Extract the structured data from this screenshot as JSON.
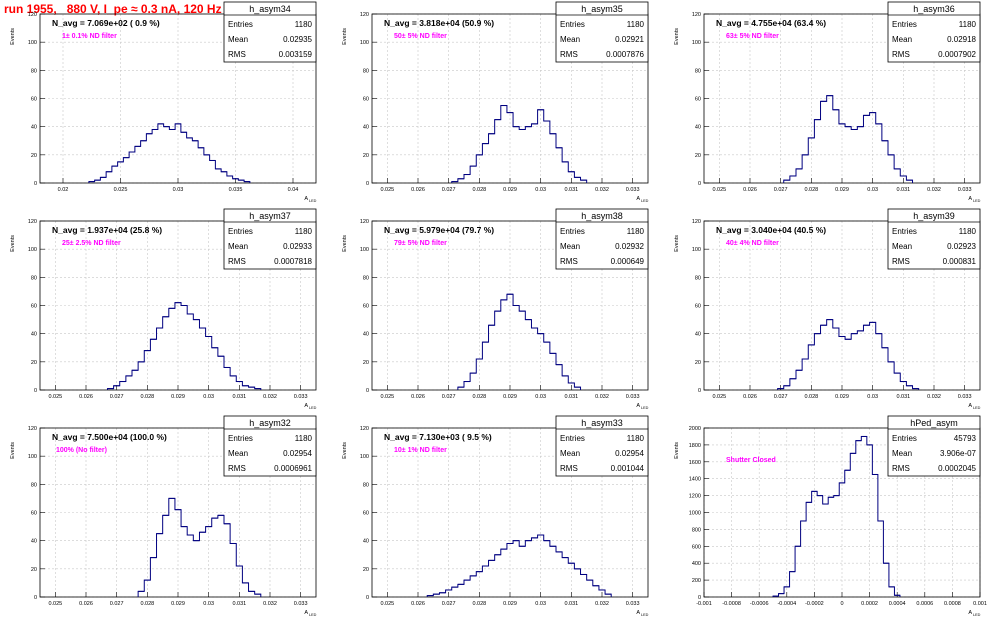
{
  "canvas_title": "run 1955,   880 V, I_pe ≈ 0.3 nA, 120 Hz",
  "stat_labels": {
    "entries": "Entries",
    "mean": "Mean",
    "rms": "RMS"
  },
  "y_axis_label": "Events",
  "x_axis_label": "A",
  "x_axis_subscript": "LED",
  "colors": {
    "hist_line": "#000080",
    "annotation": "#ff00ff",
    "grid": "#c8c8c8",
    "title": "#ff0000"
  },
  "chart_data": [
    {
      "type": "histogram",
      "name": "h_asym34",
      "title_text": "N_avg = 7.069e+02 ( 0.9 %)",
      "note": "1± 0.1% ND filter",
      "stats": {
        "entries": "1180",
        "mean": "0.02935",
        "rms": "0.003159"
      },
      "xlim": [
        0.018,
        0.042
      ],
      "ylim": [
        0,
        120
      ],
      "xticks": [
        0.02,
        0.025,
        0.03,
        0.035,
        0.04
      ],
      "xtick_labels": [
        "0.02",
        "0.025",
        "0.03",
        "0.035",
        "0.04"
      ],
      "yticks": [
        0,
        20,
        40,
        60,
        80,
        100,
        120
      ],
      "x": [
        0.0225,
        0.023,
        0.0235,
        0.024,
        0.0245,
        0.025,
        0.0255,
        0.026,
        0.0265,
        0.027,
        0.0275,
        0.028,
        0.0285,
        0.029,
        0.0295,
        0.03,
        0.0305,
        0.031,
        0.0315,
        0.032,
        0.0325,
        0.033,
        0.0335,
        0.034,
        0.0345,
        0.035,
        0.0355,
        0.036
      ],
      "values": [
        1,
        2,
        4,
        8,
        12,
        15,
        18,
        22,
        26,
        30,
        35,
        38,
        42,
        40,
        38,
        42,
        36,
        32,
        30,
        25,
        20,
        16,
        10,
        8,
        5,
        3,
        2,
        1
      ]
    },
    {
      "type": "histogram",
      "name": "h_asym35",
      "title_text": "N_avg = 3.818e+04 (50.9 %)",
      "note": "50± 5% ND filter",
      "stats": {
        "entries": "1180",
        "mean": "0.02921",
        "rms": "0.0007876"
      },
      "xlim": [
        0.0245,
        0.0335
      ],
      "ylim": [
        0,
        120
      ],
      "xticks": [
        0.025,
        0.026,
        0.027,
        0.028,
        0.029,
        0.03,
        0.031,
        0.032,
        0.033
      ],
      "xtick_labels": [
        "0.025",
        "0.026",
        "0.027",
        "0.028",
        "0.029",
        "0.03",
        "0.031",
        "0.032",
        "0.033"
      ],
      "yticks": [
        0,
        20,
        40,
        60,
        80,
        100,
        120
      ],
      "x": [
        0.0272,
        0.0274,
        0.0276,
        0.0278,
        0.028,
        0.0282,
        0.0284,
        0.0286,
        0.0288,
        0.029,
        0.0292,
        0.0294,
        0.0296,
        0.0298,
        0.03,
        0.0302,
        0.0304,
        0.0306,
        0.0308,
        0.031,
        0.0312,
        0.0314
      ],
      "values": [
        1,
        3,
        6,
        12,
        20,
        28,
        35,
        45,
        55,
        50,
        40,
        38,
        40,
        42,
        52,
        44,
        35,
        25,
        15,
        8,
        4,
        2
      ]
    },
    {
      "type": "histogram",
      "name": "h_asym36",
      "title_text": "N_avg = 4.755e+04 (63.4 %)",
      "note": "63± 5% ND filter",
      "stats": {
        "entries": "1180",
        "mean": "0.02918",
        "rms": "0.0007902"
      },
      "xlim": [
        0.0245,
        0.0335
      ],
      "ylim": [
        0,
        120
      ],
      "xticks": [
        0.025,
        0.026,
        0.027,
        0.028,
        0.029,
        0.03,
        0.031,
        0.032,
        0.033
      ],
      "xtick_labels": [
        "0.025",
        "0.026",
        "0.027",
        "0.028",
        "0.029",
        "0.03",
        "0.031",
        "0.032",
        "0.033"
      ],
      "yticks": [
        0,
        20,
        40,
        60,
        80,
        100,
        120
      ],
      "x": [
        0.0272,
        0.0274,
        0.0276,
        0.0278,
        0.028,
        0.0282,
        0.0284,
        0.0286,
        0.0288,
        0.029,
        0.0292,
        0.0294,
        0.0296,
        0.0298,
        0.03,
        0.0302,
        0.0304,
        0.0306,
        0.0308,
        0.031,
        0.0312
      ],
      "values": [
        2,
        5,
        10,
        20,
        32,
        45,
        58,
        62,
        52,
        42,
        40,
        38,
        40,
        48,
        50,
        42,
        30,
        20,
        10,
        5,
        2
      ]
    },
    {
      "type": "histogram",
      "name": "h_asym37",
      "title_text": "N_avg = 1.937e+04 (25.8 %)",
      "note": "25± 2.5% ND filter",
      "stats": {
        "entries": "1180",
        "mean": "0.02933",
        "rms": "0.0007818"
      },
      "xlim": [
        0.0245,
        0.0335
      ],
      "ylim": [
        0,
        120
      ],
      "xticks": [
        0.025,
        0.026,
        0.027,
        0.028,
        0.029,
        0.03,
        0.031,
        0.032,
        0.033
      ],
      "xtick_labels": [
        "0.025",
        "0.026",
        "0.027",
        "0.028",
        "0.029",
        "0.03",
        "0.031",
        "0.032",
        "0.033"
      ],
      "yticks": [
        0,
        20,
        40,
        60,
        80,
        100,
        120
      ],
      "x": [
        0.0268,
        0.027,
        0.0272,
        0.0274,
        0.0276,
        0.0278,
        0.028,
        0.0282,
        0.0284,
        0.0286,
        0.0288,
        0.029,
        0.0292,
        0.0294,
        0.0296,
        0.0298,
        0.03,
        0.0302,
        0.0304,
        0.0306,
        0.0308,
        0.031,
        0.0312,
        0.0314,
        0.0316
      ],
      "values": [
        1,
        3,
        6,
        10,
        14,
        20,
        28,
        36,
        44,
        52,
        58,
        62,
        60,
        54,
        50,
        44,
        38,
        30,
        24,
        16,
        10,
        6,
        3,
        2,
        1
      ]
    },
    {
      "type": "histogram",
      "name": "h_asym38",
      "title_text": "N_avg = 5.979e+04 (79.7 %)",
      "note": "79± 5% ND filter",
      "stats": {
        "entries": "1180",
        "mean": "0.02932",
        "rms": "0.000649"
      },
      "xlim": [
        0.0245,
        0.0335
      ],
      "ylim": [
        0,
        120
      ],
      "xticks": [
        0.025,
        0.026,
        0.027,
        0.028,
        0.029,
        0.03,
        0.031,
        0.032,
        0.033
      ],
      "xtick_labels": [
        "0.025",
        "0.026",
        "0.027",
        "0.028",
        "0.029",
        "0.03",
        "0.031",
        "0.032",
        "0.033"
      ],
      "yticks": [
        0,
        20,
        40,
        60,
        80,
        100,
        120
      ],
      "x": [
        0.0274,
        0.0276,
        0.0278,
        0.028,
        0.0282,
        0.0284,
        0.0286,
        0.0288,
        0.029,
        0.0292,
        0.0294,
        0.0296,
        0.0298,
        0.03,
        0.0302,
        0.0304,
        0.0306,
        0.0308,
        0.031,
        0.0312
      ],
      "values": [
        2,
        6,
        12,
        22,
        34,
        46,
        56,
        64,
        68,
        60,
        56,
        50,
        44,
        40,
        34,
        26,
        18,
        10,
        5,
        2
      ]
    },
    {
      "type": "histogram",
      "name": "h_asym39",
      "title_text": "N_avg = 3.040e+04 (40.5 %)",
      "note": "40± 4% ND filter",
      "stats": {
        "entries": "1180",
        "mean": "0.02923",
        "rms": "0.000831"
      },
      "xlim": [
        0.0245,
        0.0335
      ],
      "ylim": [
        0,
        120
      ],
      "xticks": [
        0.025,
        0.026,
        0.027,
        0.028,
        0.029,
        0.03,
        0.031,
        0.032,
        0.033
      ],
      "xtick_labels": [
        "0.025",
        "0.026",
        "0.027",
        "0.028",
        "0.029",
        "0.03",
        "0.031",
        "0.032",
        "0.033"
      ],
      "yticks": [
        0,
        20,
        40,
        60,
        80,
        100,
        120
      ],
      "x": [
        0.027,
        0.0272,
        0.0274,
        0.0276,
        0.0278,
        0.028,
        0.0282,
        0.0284,
        0.0286,
        0.0288,
        0.029,
        0.0292,
        0.0294,
        0.0296,
        0.0298,
        0.03,
        0.0302,
        0.0304,
        0.0306,
        0.0308,
        0.031,
        0.0312,
        0.0314
      ],
      "values": [
        1,
        3,
        8,
        14,
        22,
        32,
        40,
        46,
        50,
        44,
        38,
        36,
        40,
        42,
        46,
        48,
        40,
        30,
        20,
        12,
        6,
        3,
        1
      ]
    },
    {
      "type": "histogram",
      "name": "h_asym32",
      "title_text": "N_avg = 7.500e+04 (100.0 %)",
      "note": "100% (No filter)",
      "stats": {
        "entries": "1180",
        "mean": "0.02954",
        "rms": "0.0006961"
      },
      "xlim": [
        0.0245,
        0.0335
      ],
      "ylim": [
        0,
        120
      ],
      "xticks": [
        0.025,
        0.026,
        0.027,
        0.028,
        0.029,
        0.03,
        0.031,
        0.032,
        0.033
      ],
      "xtick_labels": [
        "0.025",
        "0.026",
        "0.027",
        "0.028",
        "0.029",
        "0.03",
        "0.031",
        "0.032",
        "0.033"
      ],
      "yticks": [
        0,
        20,
        40,
        60,
        80,
        100,
        120
      ],
      "x": [
        0.0278,
        0.028,
        0.0282,
        0.0284,
        0.0286,
        0.0288,
        0.029,
        0.0292,
        0.0294,
        0.0296,
        0.0298,
        0.03,
        0.0302,
        0.0304,
        0.0306,
        0.0308,
        0.031,
        0.0312,
        0.0314,
        0.0316
      ],
      "values": [
        4,
        12,
        28,
        45,
        58,
        70,
        62,
        50,
        44,
        40,
        46,
        50,
        56,
        58,
        52,
        38,
        22,
        10,
        4,
        2
      ]
    },
    {
      "type": "histogram",
      "name": "h_asym33",
      "title_text": "N_avg = 7.130e+03 ( 9.5 %)",
      "note": "10± 1% ND filter",
      "stats": {
        "entries": "1180",
        "mean": "0.02954",
        "rms": "0.001044"
      },
      "xlim": [
        0.0245,
        0.0335
      ],
      "ylim": [
        0,
        120
      ],
      "xticks": [
        0.025,
        0.026,
        0.027,
        0.028,
        0.029,
        0.03,
        0.031,
        0.032,
        0.033
      ],
      "xtick_labels": [
        "0.025",
        "0.026",
        "0.027",
        "0.028",
        "0.029",
        "0.03",
        "0.031",
        "0.032",
        "0.033"
      ],
      "yticks": [
        0,
        20,
        40,
        60,
        80,
        100,
        120
      ],
      "x": [
        0.0264,
        0.0266,
        0.0268,
        0.027,
        0.0272,
        0.0274,
        0.0276,
        0.0278,
        0.028,
        0.0282,
        0.0284,
        0.0286,
        0.0288,
        0.029,
        0.0292,
        0.0294,
        0.0296,
        0.0298,
        0.03,
        0.0302,
        0.0304,
        0.0306,
        0.0308,
        0.031,
        0.0312,
        0.0314,
        0.0316,
        0.0318,
        0.032,
        0.0322
      ],
      "values": [
        1,
        2,
        3,
        5,
        7,
        9,
        12,
        15,
        18,
        22,
        26,
        30,
        34,
        38,
        40,
        36,
        40,
        42,
        44,
        40,
        36,
        32,
        28,
        24,
        20,
        16,
        12,
        8,
        5,
        2
      ]
    },
    {
      "type": "histogram",
      "name": "hPed_asym",
      "title_text": "",
      "note": "Shutter Closed",
      "stats": {
        "entries": "45793",
        "mean": "3.906e-07",
        "rms": "0.0002045"
      },
      "xlim": [
        -0.001,
        0.001
      ],
      "ylim": [
        0,
        2000
      ],
      "xticks": [
        -0.001,
        -0.0008,
        -0.0006,
        -0.0004,
        -0.0002,
        0,
        0.0002,
        0.0004,
        0.0006,
        0.0008,
        0.001
      ],
      "xtick_labels": [
        "-0.001",
        "-0.0008",
        "-0.0006",
        "-0.0004",
        "-0.0002",
        "0",
        "0.0002",
        "0.0004",
        "0.0006",
        "0.0008",
        "0.001"
      ],
      "yticks": [
        0,
        200,
        400,
        600,
        800,
        1000,
        1200,
        1400,
        1600,
        1800,
        2000
      ],
      "x": [
        -0.00048,
        -0.00044,
        -0.0004,
        -0.00036,
        -0.00032,
        -0.00028,
        -0.00024,
        -0.0002,
        -0.00016,
        -0.00012,
        -8e-05,
        -4e-05,
        0,
        4e-05,
        8e-05,
        0.00012,
        0.00016,
        0.0002,
        0.00024,
        0.00028,
        0.00032,
        0.00036,
        0.0004
      ],
      "values": [
        10,
        40,
        120,
        300,
        600,
        900,
        1120,
        1250,
        1200,
        1100,
        1180,
        1200,
        1350,
        1500,
        1700,
        1850,
        1900,
        1800,
        1450,
        900,
        400,
        120,
        20
      ]
    }
  ]
}
